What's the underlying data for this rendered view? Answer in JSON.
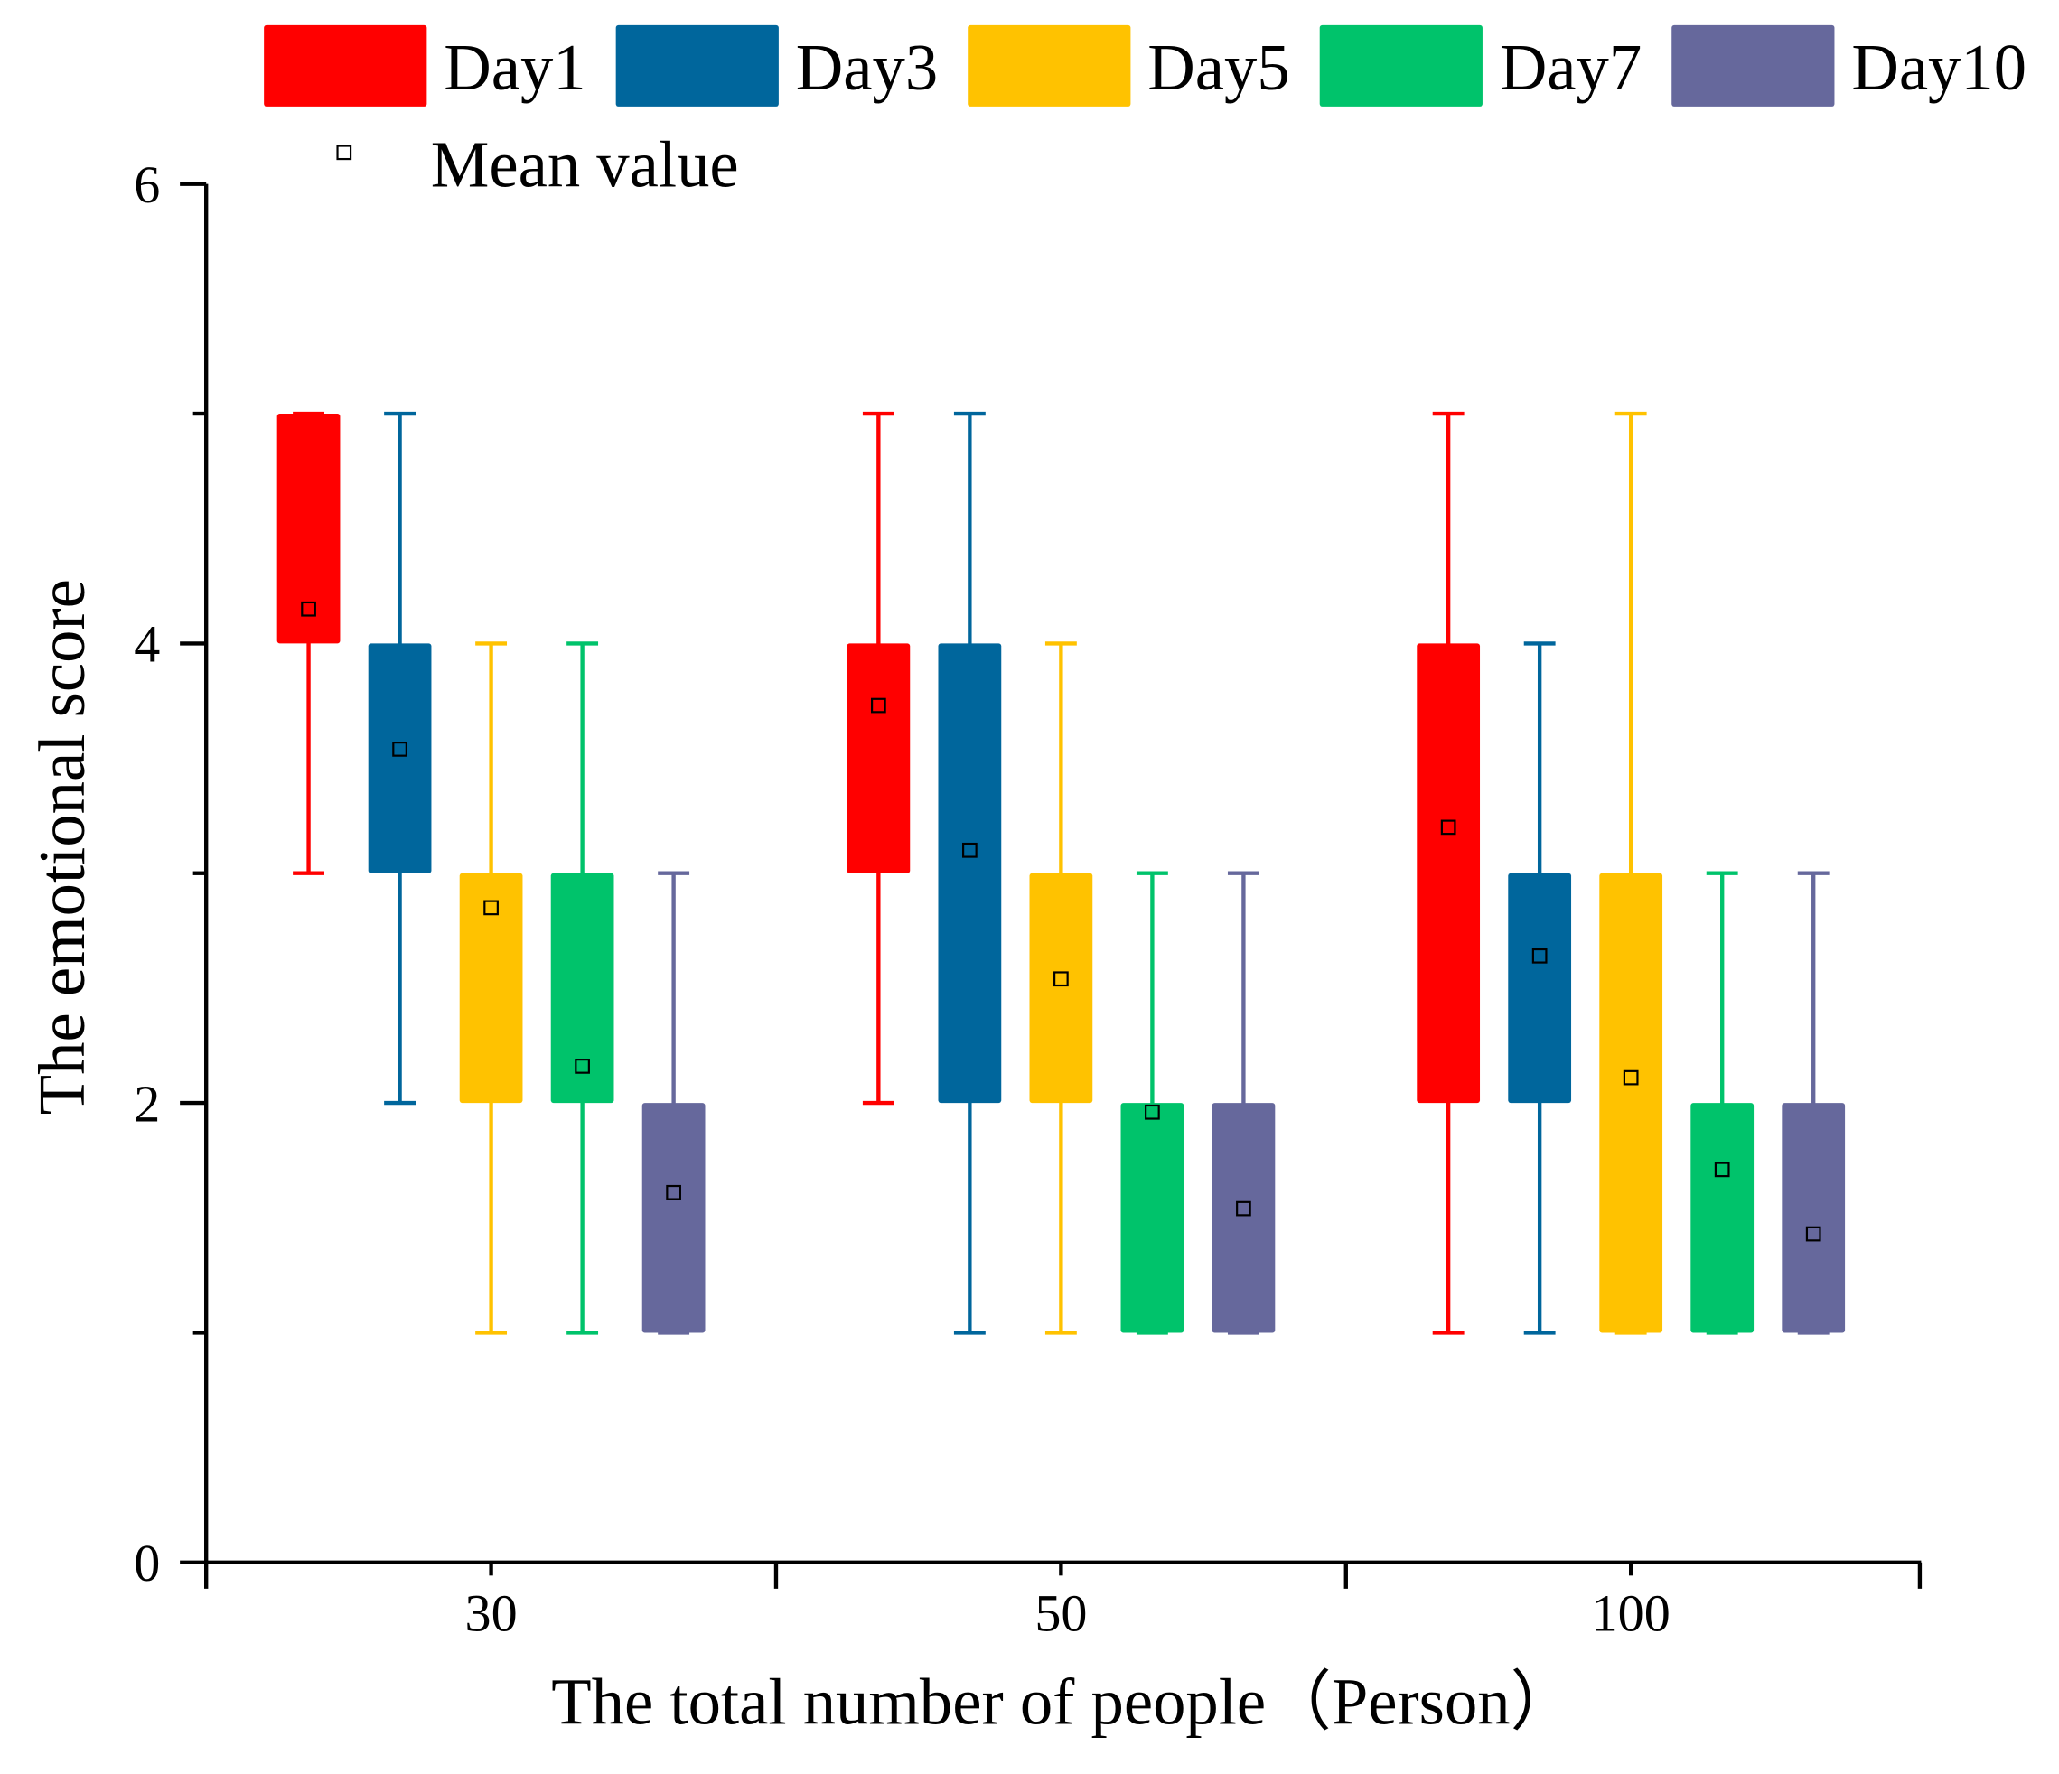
{
  "chart_data": {
    "type": "box",
    "title": "",
    "xlabel": "The total number of people（Person）",
    "ylabel": "The emotional score",
    "ylim": [
      0,
      6
    ],
    "yticks": [
      "0",
      "2",
      "4",
      "6"
    ],
    "yminor": [
      1,
      3,
      5
    ],
    "categories": [
      "30",
      "50",
      "100"
    ],
    "legend": {
      "position": "top",
      "mean_label": "Mean value"
    },
    "series": [
      {
        "name": "Day1",
        "color": "#ff0000",
        "boxes": [
          {
            "min": 3,
            "q1": 4,
            "q3": 5,
            "max": 5,
            "mean": 4.15
          },
          {
            "min": 2,
            "q1": 3,
            "q3": 4,
            "max": 5,
            "mean": 3.73
          },
          {
            "min": 1,
            "q1": 2,
            "q3": 4,
            "max": 5,
            "mean": 3.2
          }
        ]
      },
      {
        "name": "Day3",
        "color": "#00669c",
        "boxes": [
          {
            "min": 2,
            "q1": 3,
            "q3": 4,
            "max": 5,
            "mean": 3.54
          },
          {
            "min": 1,
            "q1": 2,
            "q3": 4,
            "max": 5,
            "mean": 3.1
          },
          {
            "min": 1,
            "q1": 2,
            "q3": 3,
            "max": 4,
            "mean": 2.64
          }
        ]
      },
      {
        "name": "Day5",
        "color": "#ffc200",
        "boxes": [
          {
            "min": 1,
            "q1": 2,
            "q3": 3,
            "max": 4,
            "mean": 2.85
          },
          {
            "min": 1,
            "q1": 2,
            "q3": 3,
            "max": 4,
            "mean": 2.54
          },
          {
            "min": 1,
            "q1": 1,
            "q3": 3,
            "max": 5,
            "mean": 2.11
          }
        ]
      },
      {
        "name": "Day7",
        "color": "#00c36b",
        "boxes": [
          {
            "min": 1,
            "q1": 2,
            "q3": 3,
            "max": 4,
            "mean": 2.16
          },
          {
            "min": 1,
            "q1": 1,
            "q3": 2,
            "max": 3,
            "mean": 1.96
          },
          {
            "min": 1,
            "q1": 1,
            "q3": 2,
            "max": 3,
            "mean": 1.71
          }
        ]
      },
      {
        "name": "Day10",
        "color": "#66689c",
        "boxes": [
          {
            "min": 1,
            "q1": 1,
            "q3": 2,
            "max": 3,
            "mean": 1.61
          },
          {
            "min": 1,
            "q1": 1,
            "q3": 2,
            "max": 3,
            "mean": 1.54
          },
          {
            "min": 1,
            "q1": 1,
            "q3": 2,
            "max": 3,
            "mean": 1.43
          }
        ]
      }
    ]
  }
}
